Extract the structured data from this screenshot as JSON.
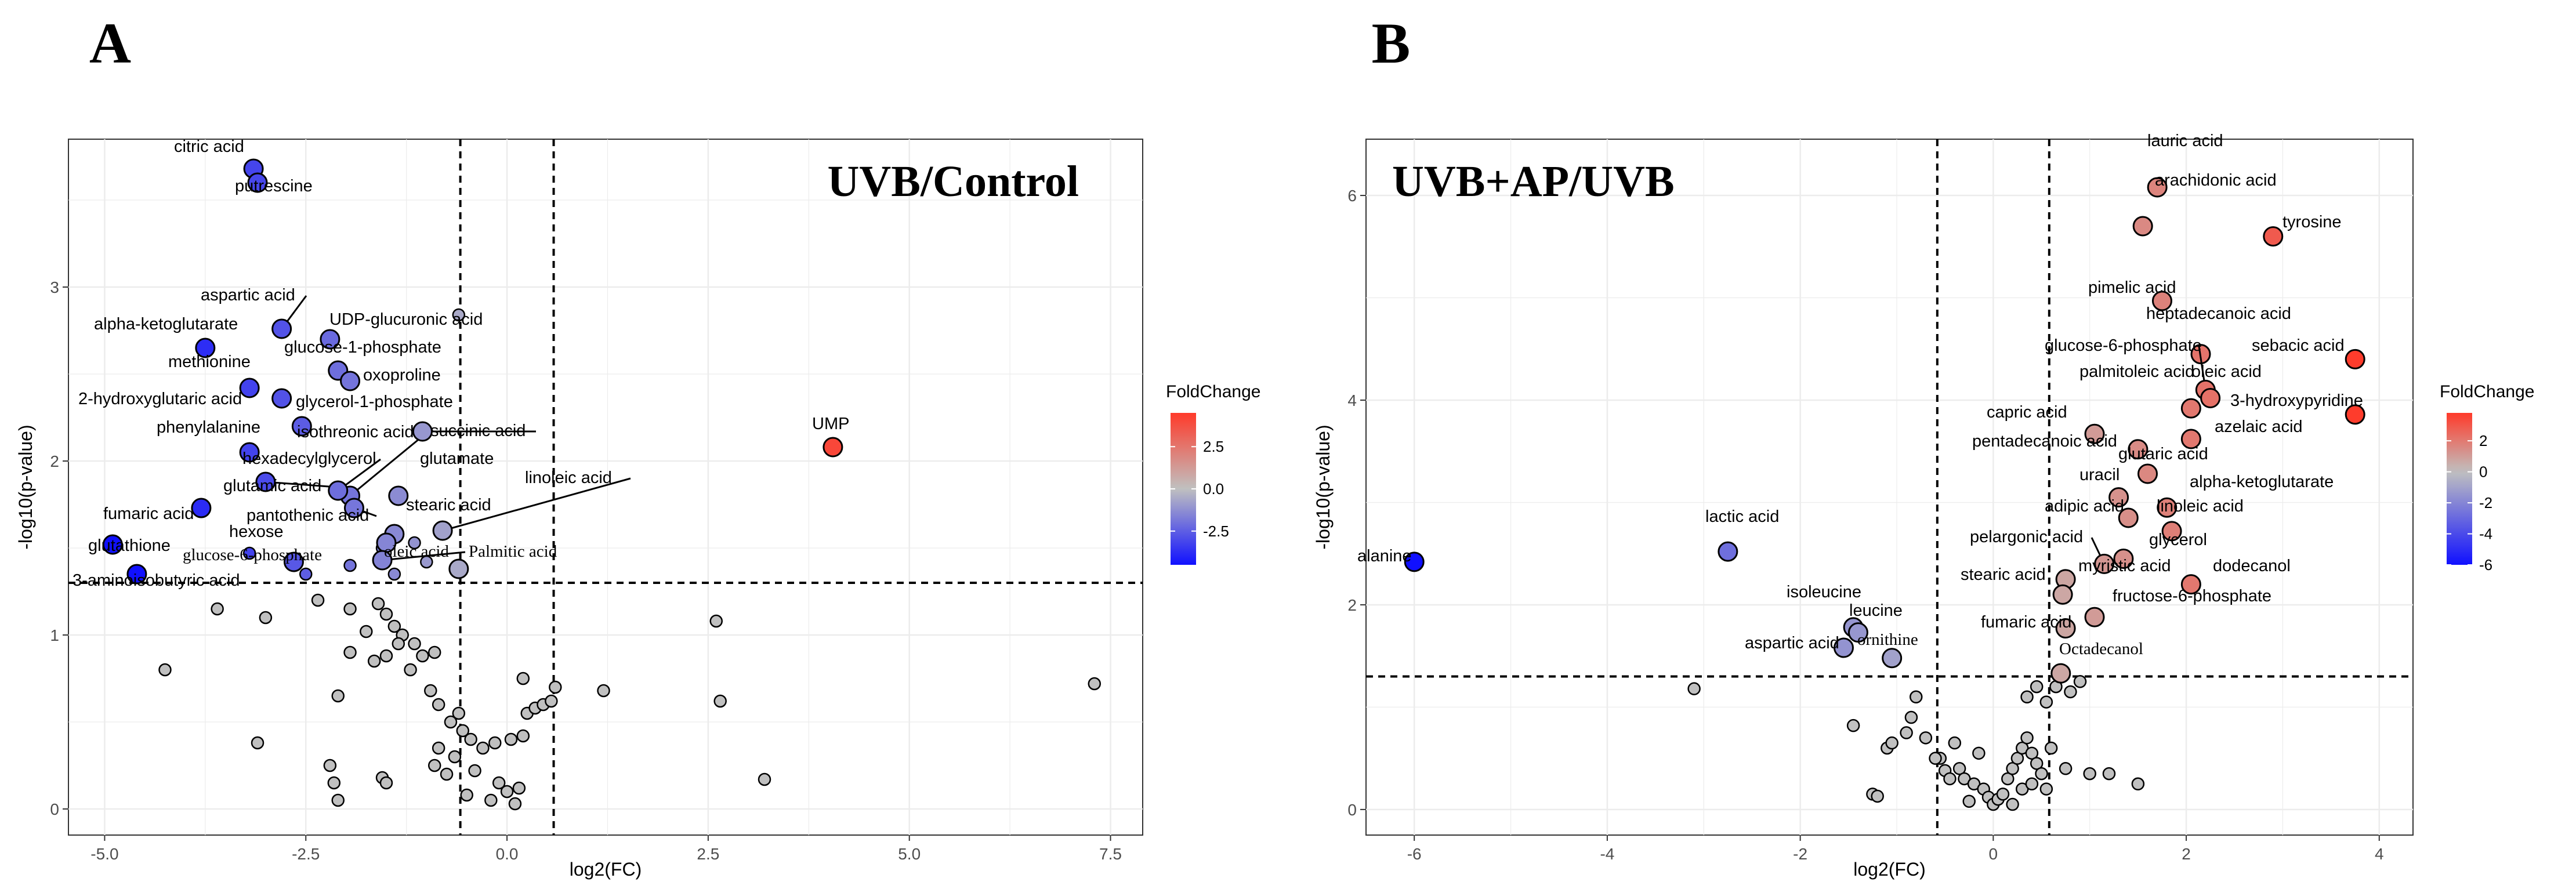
{
  "chart_data": [
    {
      "panel": "A",
      "type": "scatter",
      "title": "UVB/Control",
      "xlabel": "log2(FC)",
      "ylabel": "-log10(p-value)",
      "xlim": [
        -5.45,
        7.9
      ],
      "ylim": [
        -0.15,
        3.85
      ],
      "xticks": [
        -5.0,
        -2.5,
        0.0,
        2.5,
        5.0,
        7.5
      ],
      "xtick_labels": [
        "-5.0",
        "-2.5",
        "0.0",
        "2.5",
        "5.0",
        "7.5"
      ],
      "yticks": [
        0,
        1,
        2,
        3
      ],
      "ytick_labels": [
        "0",
        "1",
        "2",
        "3"
      ],
      "thresholds": {
        "x": [
          -0.58,
          0.58
        ],
        "y": 1.3
      },
      "grid": true,
      "legend": {
        "title": "FoldChange",
        "position": "right",
        "ticks": [
          2.5,
          0.0,
          -2.5
        ],
        "tick_labels": [
          "2.5",
          "0.0",
          "-2.5"
        ],
        "range": [
          -4.5,
          4.5
        ]
      },
      "colors": {
        "low": "#1010ff",
        "mid": "#c0c0c0",
        "high": "#ff3a2a"
      },
      "labeled_points": [
        {
          "name": "citric acid",
          "x": -3.15,
          "y": 3.68,
          "fc": -3.15
        },
        {
          "name": "putrescine",
          "x": -3.1,
          "y": 3.6,
          "fc": -3.1
        },
        {
          "name": "aspartic acid",
          "x": -2.8,
          "y": 2.76,
          "fc": -2.8
        },
        {
          "name": "UDP-glucuronic acid",
          "x": -2.2,
          "y": 2.7,
          "fc": -2.2
        },
        {
          "name": "alpha-ketoglutarate",
          "x": -3.75,
          "y": 2.65,
          "fc": -3.75
        },
        {
          "name": "glucose-1-phosphate",
          "x": -2.1,
          "y": 2.52,
          "fc": -2.1
        },
        {
          "name": "methionine",
          "x": -3.2,
          "y": 2.42,
          "fc": -3.2
        },
        {
          "name": "oxoproline",
          "x": -1.95,
          "y": 2.46,
          "fc": -1.95
        },
        {
          "name": "2-hydroxyglutaric acid",
          "x": -2.8,
          "y": 2.36,
          "fc": -2.8
        },
        {
          "name": "glycerol-1-phosphate",
          "x": -2.55,
          "y": 2.2,
          "fc": -2.55
        },
        {
          "name": "phenylalanine",
          "x": -3.2,
          "y": 2.05,
          "fc": -3.2
        },
        {
          "name": "isothreonic acid",
          "x": -1.95,
          "y": 1.8,
          "fc": -1.95
        },
        {
          "name": "succinic acid",
          "x": -1.05,
          "y": 2.17,
          "fc": -1.05
        },
        {
          "name": "hexadecylglycerol",
          "x": -2.1,
          "y": 1.83,
          "fc": -2.1
        },
        {
          "name": "glutamate",
          "x": -1.35,
          "y": 1.8,
          "fc": -1.35
        },
        {
          "name": "glutamic acid",
          "x": -3.0,
          "y": 1.88,
          "fc": -3.0
        },
        {
          "name": "linoleic acid",
          "x": -0.8,
          "y": 1.6,
          "fc": -0.8
        },
        {
          "name": "fumaric acid",
          "x": -3.8,
          "y": 1.73,
          "fc": -3.8
        },
        {
          "name": "stearic acid",
          "x": -1.4,
          "y": 1.58,
          "fc": -1.4
        },
        {
          "name": "pantothenic acid",
          "x": -1.9,
          "y": 1.73,
          "fc": -1.9
        },
        {
          "name": "hexose",
          "x": -1.5,
          "y": 1.53,
          "fc": -1.5
        },
        {
          "name": "glutathione",
          "x": -4.9,
          "y": 1.52,
          "fc": -4.9
        },
        {
          "name": "glucose-6-phosphate",
          "x": -2.65,
          "y": 1.42,
          "fc": -2.65
        },
        {
          "name": "oleic acid",
          "x": -1.55,
          "y": 1.43,
          "fc": -1.55
        },
        {
          "name": "Palmitic acid",
          "x": -0.6,
          "y": 1.38,
          "fc": -0.6
        },
        {
          "name": "3-aminoisobutyric acid",
          "x": -4.6,
          "y": 1.35,
          "fc": -4.6
        },
        {
          "name": "UMP",
          "x": 4.05,
          "y": 2.08,
          "fc": 4.05
        }
      ],
      "other_points": [
        {
          "x": -3.2,
          "y": 1.47,
          "fc": -3.2
        },
        {
          "x": -1.95,
          "y": 1.4,
          "fc": -1.95
        },
        {
          "x": -1.4,
          "y": 1.35,
          "fc": -1.4
        },
        {
          "x": -0.6,
          "y": 2.84,
          "fc": -0.6
        },
        {
          "x": -2.5,
          "y": 1.35,
          "fc": -2.5
        },
        {
          "x": -1.55,
          "y": 1.5,
          "fc": -1.55
        },
        {
          "x": -1.15,
          "y": 1.53,
          "fc": -1.15
        },
        {
          "x": -1.0,
          "y": 1.42,
          "fc": -1.0
        },
        {
          "x": -3.6,
          "y": 1.15,
          "fc": 0
        },
        {
          "x": -3.0,
          "y": 1.1,
          "fc": 0
        },
        {
          "x": -2.35,
          "y": 1.2,
          "fc": 0
        },
        {
          "x": -1.95,
          "y": 1.15,
          "fc": 0
        },
        {
          "x": -1.6,
          "y": 1.18,
          "fc": 0
        },
        {
          "x": -1.5,
          "y": 1.12,
          "fc": 0
        },
        {
          "x": -1.4,
          "y": 1.05,
          "fc": 0
        },
        {
          "x": -1.75,
          "y": 1.02,
          "fc": 0
        },
        {
          "x": -1.3,
          "y": 1.0,
          "fc": 0
        },
        {
          "x": -1.15,
          "y": 0.95,
          "fc": 0
        },
        {
          "x": -1.05,
          "y": 0.88,
          "fc": 0
        },
        {
          "x": -0.9,
          "y": 0.9,
          "fc": 0
        },
        {
          "x": -1.95,
          "y": 0.9,
          "fc": 0
        },
        {
          "x": -1.5,
          "y": 0.88,
          "fc": 0
        },
        {
          "x": -1.35,
          "y": 0.95,
          "fc": 0
        },
        {
          "x": -1.65,
          "y": 0.85,
          "fc": 0
        },
        {
          "x": -2.1,
          "y": 0.65,
          "fc": 0
        },
        {
          "x": -1.2,
          "y": 0.8,
          "fc": 0
        },
        {
          "x": -0.95,
          "y": 0.68,
          "fc": 0
        },
        {
          "x": -0.85,
          "y": 0.6,
          "fc": 0
        },
        {
          "x": -0.7,
          "y": 0.5,
          "fc": 0
        },
        {
          "x": -0.6,
          "y": 0.55,
          "fc": 0
        },
        {
          "x": -0.55,
          "y": 0.45,
          "fc": 0
        },
        {
          "x": -0.45,
          "y": 0.4,
          "fc": 0
        },
        {
          "x": -0.85,
          "y": 0.35,
          "fc": 0
        },
        {
          "x": -0.9,
          "y": 0.25,
          "fc": 0
        },
        {
          "x": -0.75,
          "y": 0.2,
          "fc": 0
        },
        {
          "x": -0.65,
          "y": 0.3,
          "fc": 0
        },
        {
          "x": -0.4,
          "y": 0.22,
          "fc": 0
        },
        {
          "x": -0.3,
          "y": 0.35,
          "fc": 0
        },
        {
          "x": -0.15,
          "y": 0.38,
          "fc": 0
        },
        {
          "x": 0.05,
          "y": 0.4,
          "fc": 0
        },
        {
          "x": 0.2,
          "y": 0.42,
          "fc": 0
        },
        {
          "x": 0.25,
          "y": 0.55,
          "fc": 0
        },
        {
          "x": 0.35,
          "y": 0.58,
          "fc": 0
        },
        {
          "x": 0.45,
          "y": 0.6,
          "fc": 0
        },
        {
          "x": 0.55,
          "y": 0.62,
          "fc": 0
        },
        {
          "x": 0.6,
          "y": 0.7,
          "fc": 0
        },
        {
          "x": 0.2,
          "y": 0.75,
          "fc": 0
        },
        {
          "x": -0.1,
          "y": 0.15,
          "fc": 0
        },
        {
          "x": 0.0,
          "y": 0.1,
          "fc": 0
        },
        {
          "x": 0.15,
          "y": 0.12,
          "fc": 0
        },
        {
          "x": -0.2,
          "y": 0.05,
          "fc": 0
        },
        {
          "x": 0.1,
          "y": 0.03,
          "fc": 0
        },
        {
          "x": -0.5,
          "y": 0.08,
          "fc": 0
        },
        {
          "x": -2.2,
          "y": 0.25,
          "fc": 0
        },
        {
          "x": -2.15,
          "y": 0.15,
          "fc": 0
        },
        {
          "x": -1.55,
          "y": 0.18,
          "fc": 0
        },
        {
          "x": -1.5,
          "y": 0.15,
          "fc": 0
        },
        {
          "x": -2.1,
          "y": 0.05,
          "fc": 0
        },
        {
          "x": -3.1,
          "y": 0.38,
          "fc": 0
        },
        {
          "x": -4.25,
          "y": 0.8,
          "fc": 0
        },
        {
          "x": 1.2,
          "y": 0.68,
          "fc": 0
        },
        {
          "x": 2.6,
          "y": 1.08,
          "fc": 0
        },
        {
          "x": 2.65,
          "y": 0.62,
          "fc": 0
        },
        {
          "x": 3.2,
          "y": 0.17,
          "fc": 0
        },
        {
          "x": 7.3,
          "y": 0.72,
          "fc": 0
        }
      ]
    },
    {
      "panel": "B",
      "type": "scatter",
      "title": "UVB+AP/UVB",
      "xlabel": "log2(FC)",
      "ylabel": "-log10(p-value)",
      "xlim": [
        -6.5,
        4.35
      ],
      "ylim": [
        -0.25,
        6.55
      ],
      "xticks": [
        -6,
        -4,
        -2,
        0,
        2,
        4
      ],
      "xtick_labels": [
        "-6",
        "-4",
        "-2",
        "0",
        "2",
        "4"
      ],
      "yticks": [
        0,
        2,
        4,
        6
      ],
      "ytick_labels": [
        "0",
        "2",
        "4",
        "6"
      ],
      "thresholds": {
        "x": [
          -0.58,
          0.58
        ],
        "y": 1.3
      },
      "grid": true,
      "legend": {
        "title": "FoldChange",
        "position": "right",
        "ticks": [
          2,
          0,
          -2,
          -4,
          -6
        ],
        "tick_labels": [
          "2",
          "0",
          "-2",
          "-4",
          "-6"
        ],
        "range": [
          -6.0,
          3.8
        ]
      },
      "colors": {
        "low": "#1010ff",
        "mid": "#c0c0c0",
        "high": "#ff3a2a"
      },
      "labeled_points": [
        {
          "name": "lauric acid",
          "x": 1.7,
          "y": 6.08,
          "fc": 1.7
        },
        {
          "name": "arachidonic acid",
          "x": 1.55,
          "y": 5.7,
          "fc": 1.55
        },
        {
          "name": "tyrosine",
          "x": 2.9,
          "y": 5.6,
          "fc": 2.9
        },
        {
          "name": "pimelic acid",
          "x": 1.75,
          "y": 4.97,
          "fc": 1.75
        },
        {
          "name": "heptadecanoic acid",
          "x": 2.15,
          "y": 4.45,
          "fc": 2.15
        },
        {
          "name": "sebacic acid",
          "x": 3.75,
          "y": 4.4,
          "fc": 3.75
        },
        {
          "name": "glucose-6-phosphate",
          "x": 2.2,
          "y": 4.1,
          "fc": 2.2
        },
        {
          "name": "palmitoleic acid",
          "x": 2.05,
          "y": 3.92,
          "fc": 2.05
        },
        {
          "name": "oleic acid",
          "x": 2.25,
          "y": 4.02,
          "fc": 2.25
        },
        {
          "name": "3-hydroxypyridine",
          "x": 3.75,
          "y": 3.86,
          "fc": 3.75
        },
        {
          "name": "capric acid",
          "x": 1.05,
          "y": 3.67,
          "fc": 1.05
        },
        {
          "name": "azelaic acid",
          "x": 2.05,
          "y": 3.62,
          "fc": 2.05
        },
        {
          "name": "pentadecanoic acid",
          "x": 1.5,
          "y": 3.52,
          "fc": 1.5
        },
        {
          "name": "glutaric acid",
          "x": 1.6,
          "y": 3.28,
          "fc": 1.6
        },
        {
          "name": "uracil",
          "x": 1.3,
          "y": 3.05,
          "fc": 1.3
        },
        {
          "name": "alpha-ketoglutarate",
          "x": 1.8,
          "y": 2.95,
          "fc": 1.8
        },
        {
          "name": "adipic acid",
          "x": 1.4,
          "y": 2.85,
          "fc": 1.4
        },
        {
          "name": "linoleic acid",
          "x": 1.85,
          "y": 2.72,
          "fc": 1.85
        },
        {
          "name": "lactic acid",
          "x": -2.75,
          "y": 2.52,
          "fc": -2.75
        },
        {
          "name": "pelargonic acid",
          "x": 1.15,
          "y": 2.4,
          "fc": 1.15
        },
        {
          "name": "glycerol",
          "x": 1.35,
          "y": 2.45,
          "fc": 1.35
        },
        {
          "name": "alanine",
          "x": -6.0,
          "y": 2.42,
          "fc": -6.0
        },
        {
          "name": "myristic acid",
          "x": 0.75,
          "y": 2.25,
          "fc": 0.75
        },
        {
          "name": "dodecanol",
          "x": 2.05,
          "y": 2.2,
          "fc": 2.05
        },
        {
          "name": "stearic acid",
          "x": 0.72,
          "y": 2.1,
          "fc": 0.72
        },
        {
          "name": "fructose-6-phosphate",
          "x": 1.05,
          "y": 1.88,
          "fc": 1.05
        },
        {
          "name": "isoleucine",
          "x": -1.45,
          "y": 1.78,
          "fc": -1.45
        },
        {
          "name": "leucine",
          "x": -1.4,
          "y": 1.73,
          "fc": -1.4
        },
        {
          "name": "fumaric acid",
          "x": 0.75,
          "y": 1.77,
          "fc": 0.75
        },
        {
          "name": "aspartic acid",
          "x": -1.55,
          "y": 1.58,
          "fc": -1.55
        },
        {
          "name": "ornithine",
          "x": -1.05,
          "y": 1.48,
          "fc": -1.05
        },
        {
          "name": "Octadecanol",
          "x": 0.7,
          "y": 1.33,
          "fc": 0.7
        }
      ],
      "other_points": [
        {
          "x": -3.1,
          "y": 1.18,
          "fc": 0
        },
        {
          "x": -1.45,
          "y": 0.82,
          "fc": 0
        },
        {
          "x": -1.1,
          "y": 0.6,
          "fc": 0
        },
        {
          "x": -1.05,
          "y": 0.65,
          "fc": 0
        },
        {
          "x": -1.25,
          "y": 0.15,
          "fc": 0
        },
        {
          "x": -1.2,
          "y": 0.13,
          "fc": 0
        },
        {
          "x": -0.8,
          "y": 1.1,
          "fc": 0
        },
        {
          "x": -0.85,
          "y": 0.9,
          "fc": 0
        },
        {
          "x": -0.9,
          "y": 0.75,
          "fc": 0
        },
        {
          "x": -0.7,
          "y": 0.7,
          "fc": 0
        },
        {
          "x": -0.55,
          "y": 0.5,
          "fc": 0
        },
        {
          "x": -0.5,
          "y": 0.38,
          "fc": 0
        },
        {
          "x": -0.4,
          "y": 0.65,
          "fc": 0
        },
        {
          "x": -0.35,
          "y": 0.4,
          "fc": 0
        },
        {
          "x": -0.3,
          "y": 0.3,
          "fc": 0
        },
        {
          "x": -0.2,
          "y": 0.25,
          "fc": 0
        },
        {
          "x": -0.15,
          "y": 0.55,
          "fc": 0
        },
        {
          "x": -0.1,
          "y": 0.2,
          "fc": 0
        },
        {
          "x": -0.05,
          "y": 0.12,
          "fc": 0
        },
        {
          "x": 0.0,
          "y": 0.05,
          "fc": 0
        },
        {
          "x": 0.05,
          "y": 0.1,
          "fc": 0
        },
        {
          "x": 0.1,
          "y": 0.15,
          "fc": 0
        },
        {
          "x": 0.15,
          "y": 0.3,
          "fc": 0
        },
        {
          "x": 0.2,
          "y": 0.4,
          "fc": 0
        },
        {
          "x": 0.25,
          "y": 0.5,
          "fc": 0
        },
        {
          "x": 0.3,
          "y": 0.6,
          "fc": 0
        },
        {
          "x": 0.35,
          "y": 0.7,
          "fc": 0
        },
        {
          "x": 0.4,
          "y": 0.55,
          "fc": 0
        },
        {
          "x": 0.45,
          "y": 0.45,
          "fc": 0
        },
        {
          "x": 0.5,
          "y": 0.35,
          "fc": 0
        },
        {
          "x": 0.3,
          "y": 0.2,
          "fc": 0
        },
        {
          "x": 0.4,
          "y": 0.25,
          "fc": 0
        },
        {
          "x": -0.25,
          "y": 0.08,
          "fc": 0
        },
        {
          "x": 0.2,
          "y": 0.05,
          "fc": 0
        },
        {
          "x": 0.55,
          "y": 0.2,
          "fc": 0
        },
        {
          "x": 0.6,
          "y": 0.6,
          "fc": 0
        },
        {
          "x": 0.55,
          "y": 1.05,
          "fc": 0
        },
        {
          "x": 0.65,
          "y": 1.2,
          "fc": 0
        },
        {
          "x": 0.8,
          "y": 1.15,
          "fc": 0
        },
        {
          "x": 0.35,
          "y": 1.1,
          "fc": 0
        },
        {
          "x": 0.45,
          "y": 1.2,
          "fc": 0
        },
        {
          "x": 0.9,
          "y": 1.25,
          "fc": 0
        },
        {
          "x": 1.0,
          "y": 0.35,
          "fc": 0
        },
        {
          "x": 1.2,
          "y": 0.35,
          "fc": 0
        },
        {
          "x": 1.5,
          "y": 0.25,
          "fc": 0
        },
        {
          "x": 0.75,
          "y": 0.4,
          "fc": 0
        },
        {
          "x": -0.6,
          "y": 0.5,
          "fc": 0
        },
        {
          "x": -0.45,
          "y": 0.3,
          "fc": 0
        }
      ]
    }
  ]
}
